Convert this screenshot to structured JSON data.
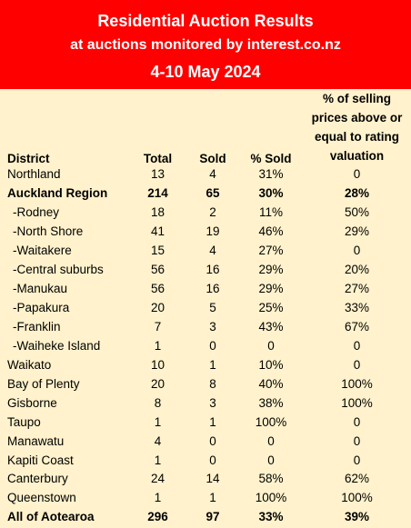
{
  "title": {
    "line1": "Residential Auction Results",
    "line2": "at auctions monitored by interest.co.nz",
    "line3": "4-10 May 2024"
  },
  "colors": {
    "banner": "#FF0000",
    "background": "#FFF2CC"
  },
  "headers": {
    "district": "District",
    "total": "Total",
    "sold": "Sold",
    "pct_sold": "% Sold",
    "pct_valuation_l1": "% of selling",
    "pct_valuation_l2": "prices above or",
    "pct_valuation_l3": "equal to rating",
    "pct_valuation_l4": "valuation"
  },
  "rows": [
    {
      "district": "Northland",
      "total": "13",
      "sold": "4",
      "pct_sold": "31%",
      "pct_valuation": "0"
    },
    {
      "district": "Auckland Region",
      "total": "214",
      "sold": "65",
      "pct_sold": "30%",
      "pct_valuation": "28%"
    },
    {
      "district": "-Rodney",
      "total": "18",
      "sold": "2",
      "pct_sold": "11%",
      "pct_valuation": "50%"
    },
    {
      "district": "-North Shore",
      "total": "41",
      "sold": "19",
      "pct_sold": "46%",
      "pct_valuation": "29%"
    },
    {
      "district": "-Waitakere",
      "total": "15",
      "sold": "4",
      "pct_sold": "27%",
      "pct_valuation": "0"
    },
    {
      "district": "-Central suburbs",
      "total": "56",
      "sold": "16",
      "pct_sold": "29%",
      "pct_valuation": "20%"
    },
    {
      "district": "-Manukau",
      "total": "56",
      "sold": "16",
      "pct_sold": "29%",
      "pct_valuation": "27%"
    },
    {
      "district": "-Papakura",
      "total": "20",
      "sold": "5",
      "pct_sold": "25%",
      "pct_valuation": "33%"
    },
    {
      "district": "-Franklin",
      "total": "7",
      "sold": "3",
      "pct_sold": "43%",
      "pct_valuation": "67%"
    },
    {
      "district": "-Waiheke Island",
      "total": "1",
      "sold": "0",
      "pct_sold": "0",
      "pct_valuation": "0"
    },
    {
      "district": "Waikato",
      "total": "10",
      "sold": "1",
      "pct_sold": "10%",
      "pct_valuation": "0"
    },
    {
      "district": "Bay of Plenty",
      "total": "20",
      "sold": "8",
      "pct_sold": "40%",
      "pct_valuation": "100%"
    },
    {
      "district": "Gisborne",
      "total": "8",
      "sold": "3",
      "pct_sold": "38%",
      "pct_valuation": "100%"
    },
    {
      "district": "Taupo",
      "total": "1",
      "sold": "1",
      "pct_sold": "100%",
      "pct_valuation": "0"
    },
    {
      "district": "Manawatu",
      "total": "4",
      "sold": "0",
      "pct_sold": "0",
      "pct_valuation": "0"
    },
    {
      "district": "Kapiti Coast",
      "total": "1",
      "sold": "0",
      "pct_sold": "0",
      "pct_valuation": "0"
    },
    {
      "district": "Canterbury",
      "total": "24",
      "sold": "14",
      "pct_sold": "58%",
      "pct_valuation": "62%"
    },
    {
      "district": "Queenstown",
      "total": "1",
      "sold": "1",
      "pct_sold": "100%",
      "pct_valuation": "100%"
    },
    {
      "district": "All of Aotearoa",
      "total": "296",
      "sold": "97",
      "pct_sold": "33%",
      "pct_valuation": "39%"
    }
  ]
}
